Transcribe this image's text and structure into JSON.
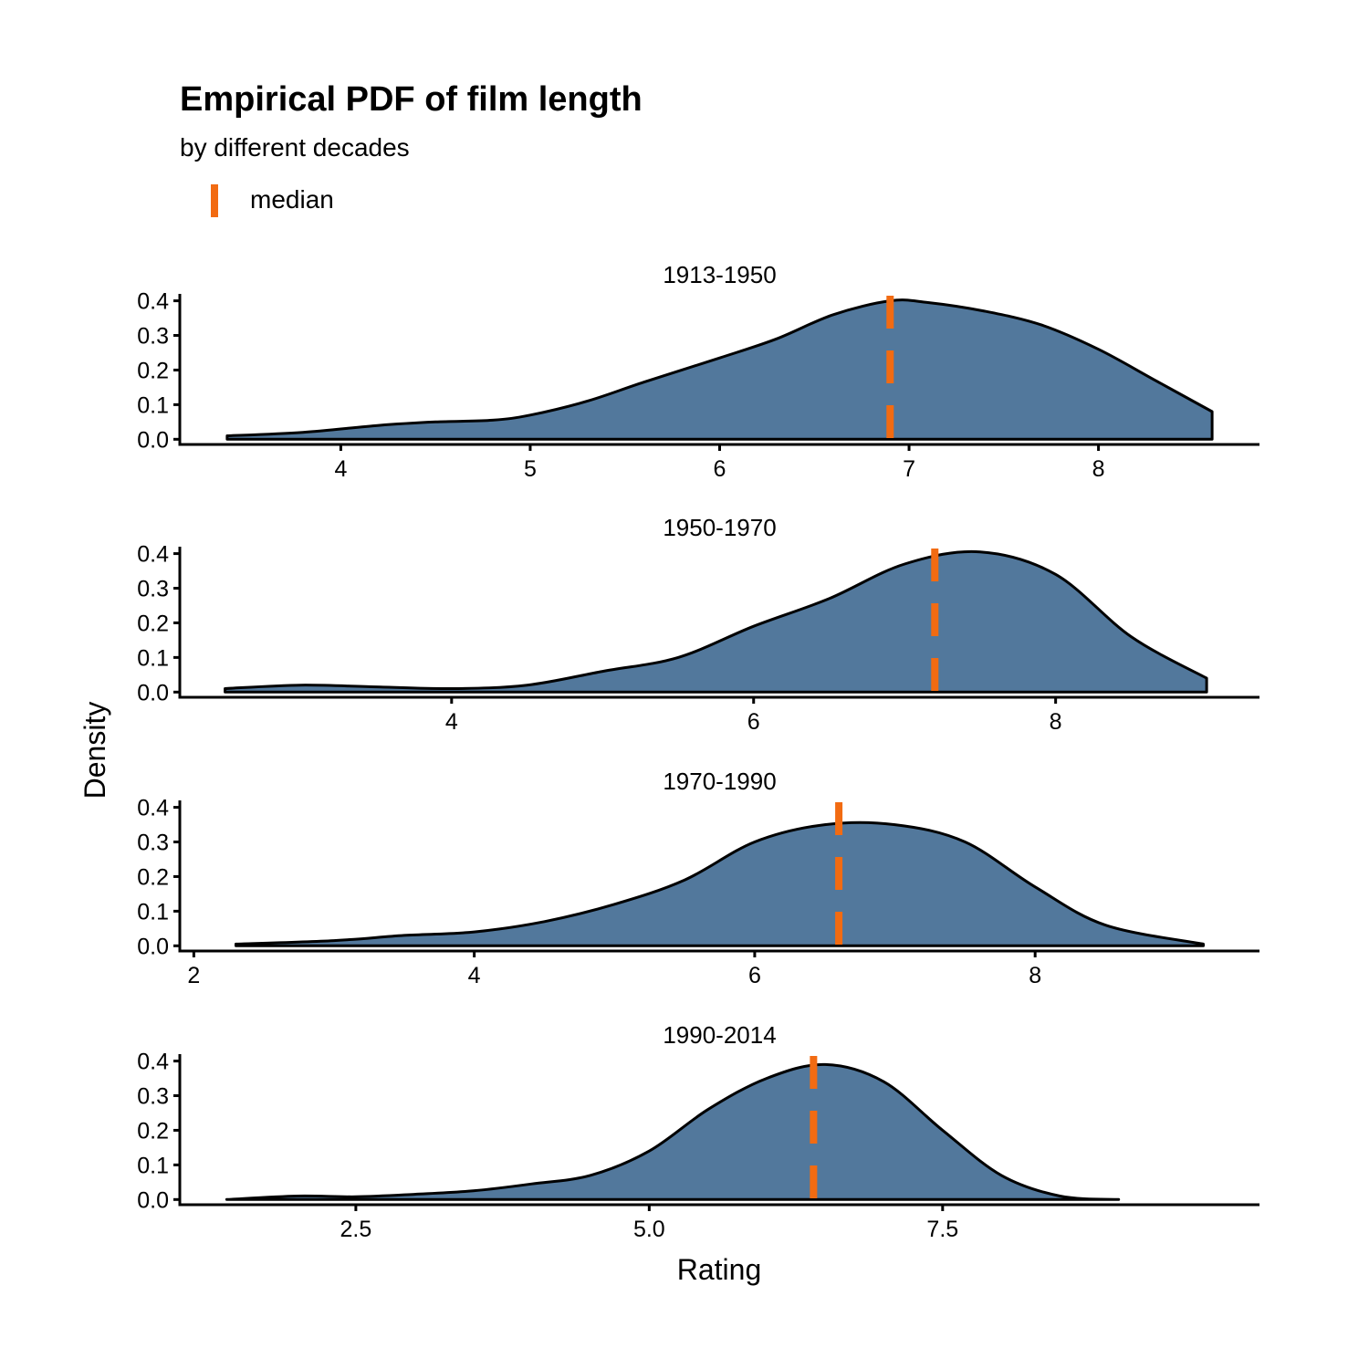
{
  "chart_data": {
    "type": "area",
    "title": "Empirical PDF of film length",
    "subtitle": "by different decades",
    "legend": {
      "label": "median",
      "position": "top-left"
    },
    "xlabel": "Rating",
    "ylabel": "Density",
    "grid": false,
    "colors": {
      "fill": "#52789C",
      "outline": "#000000",
      "median": "#F26B12"
    },
    "panels": [
      {
        "label": "1913-1950",
        "xlim": [
          3.15,
          8.85
        ],
        "ylim": [
          -0.015,
          0.42
        ],
        "xticks": [
          4,
          5,
          6,
          7,
          8
        ],
        "xtick_labels": [
          "4",
          "5",
          "6",
          "7",
          "8"
        ],
        "yticks": [
          0.0,
          0.1,
          0.2,
          0.3,
          0.4
        ],
        "ytick_labels": [
          "0.0",
          "0.1",
          "0.2",
          "0.3",
          "0.4"
        ],
        "median": 6.9,
        "x": [
          3.4,
          3.8,
          4.2,
          4.5,
          4.8,
          5.0,
          5.3,
          5.6,
          6.0,
          6.3,
          6.6,
          6.9,
          7.1,
          7.4,
          7.7,
          8.0,
          8.3,
          8.6
        ],
        "y": [
          0.01,
          0.02,
          0.04,
          0.05,
          0.055,
          0.07,
          0.11,
          0.165,
          0.235,
          0.29,
          0.36,
          0.4,
          0.395,
          0.37,
          0.33,
          0.26,
          0.17,
          0.08
        ]
      },
      {
        "label": "1950-1970",
        "xlim": [
          2.2,
          9.35
        ],
        "ylim": [
          -0.015,
          0.42
        ],
        "xticks": [
          4,
          6,
          8
        ],
        "xtick_labels": [
          "4",
          "6",
          "8"
        ],
        "yticks": [
          0.0,
          0.1,
          0.2,
          0.3,
          0.4
        ],
        "ytick_labels": [
          "0.0",
          "0.1",
          "0.2",
          "0.3",
          "0.4"
        ],
        "median": 7.2,
        "x": [
          2.5,
          3.0,
          3.5,
          4.0,
          4.5,
          5.0,
          5.5,
          6.0,
          6.5,
          7.0,
          7.5,
          8.0,
          8.5,
          9.0
        ],
        "y": [
          0.01,
          0.02,
          0.015,
          0.01,
          0.02,
          0.06,
          0.1,
          0.19,
          0.27,
          0.37,
          0.405,
          0.34,
          0.16,
          0.04
        ]
      },
      {
        "label": "1970-1990",
        "xlim": [
          1.9,
          9.6
        ],
        "ylim": [
          -0.015,
          0.42
        ],
        "xticks": [
          2,
          4,
          6,
          8
        ],
        "xtick_labels": [
          "2",
          "4",
          "6",
          "8"
        ],
        "yticks": [
          0.0,
          0.1,
          0.2,
          0.3,
          0.4
        ],
        "ytick_labels": [
          "0.0",
          "0.1",
          "0.2",
          "0.3",
          "0.4"
        ],
        "median": 6.6,
        "x": [
          2.3,
          3.0,
          3.5,
          4.0,
          4.5,
          5.0,
          5.5,
          6.0,
          6.5,
          7.0,
          7.5,
          8.0,
          8.5,
          9.2
        ],
        "y": [
          0.005,
          0.015,
          0.03,
          0.04,
          0.07,
          0.12,
          0.19,
          0.3,
          0.35,
          0.35,
          0.3,
          0.17,
          0.06,
          0.005
        ]
      },
      {
        "label": "1990-2014",
        "xlim": [
          1.0,
          10.2
        ],
        "ylim": [
          -0.015,
          0.42
        ],
        "xticks": [
          2.5,
          5.0,
          7.5
        ],
        "xtick_labels": [
          "2.5",
          "5.0",
          "7.5"
        ],
        "yticks": [
          0.0,
          0.1,
          0.2,
          0.3,
          0.4
        ],
        "ytick_labels": [
          "0.0",
          "0.1",
          "0.2",
          "0.3",
          "0.4"
        ],
        "median": 6.4,
        "x": [
          1.4,
          2.0,
          2.5,
          3.0,
          3.5,
          4.0,
          4.5,
          5.0,
          5.5,
          6.0,
          6.5,
          7.0,
          7.5,
          8.0,
          8.5,
          9.0
        ],
        "y": [
          0.0,
          0.01,
          0.008,
          0.015,
          0.025,
          0.045,
          0.07,
          0.14,
          0.26,
          0.35,
          0.39,
          0.34,
          0.2,
          0.07,
          0.01,
          0.0
        ]
      }
    ]
  }
}
